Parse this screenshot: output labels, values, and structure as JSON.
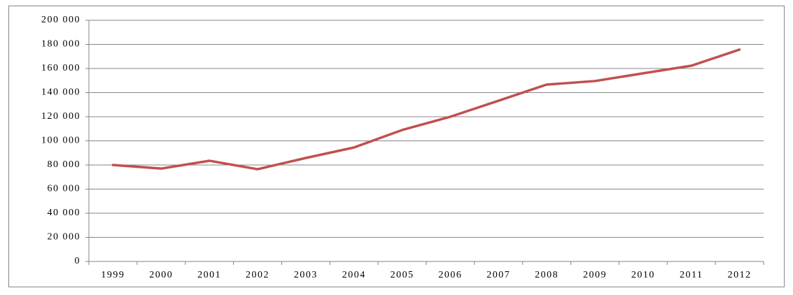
{
  "chart_data": {
    "type": "line",
    "categories": [
      "1999",
      "2000",
      "2001",
      "2002",
      "2003",
      "2004",
      "2005",
      "2006",
      "2007",
      "2008",
      "2009",
      "2010",
      "2011",
      "2012"
    ],
    "values": [
      80000,
      77000,
      83500,
      76500,
      85800,
      94500,
      109000,
      120000,
      133300,
      146700,
      149600,
      156000,
      162300,
      175700
    ],
    "color": "#c0504d",
    "ylim": [
      0,
      200000
    ],
    "yticks": [
      0,
      {
        "value": 20000,
        "label": "20 000"
      },
      {
        "value": 40000,
        "label": "40 000"
      },
      {
        "value": 60000,
        "label": "60 000"
      },
      {
        "value": 80000,
        "label": "80 000"
      },
      {
        "value": 100000,
        "label": "100 000"
      },
      {
        "value": 120000,
        "label": "120 000"
      },
      {
        "value": 140000,
        "label": "140 000"
      },
      {
        "value": 160000,
        "label": "160 000"
      },
      {
        "value": 180000,
        "label": "180 000"
      },
      {
        "value": 200000,
        "label": "200 000"
      }
    ],
    "grid": true
  }
}
